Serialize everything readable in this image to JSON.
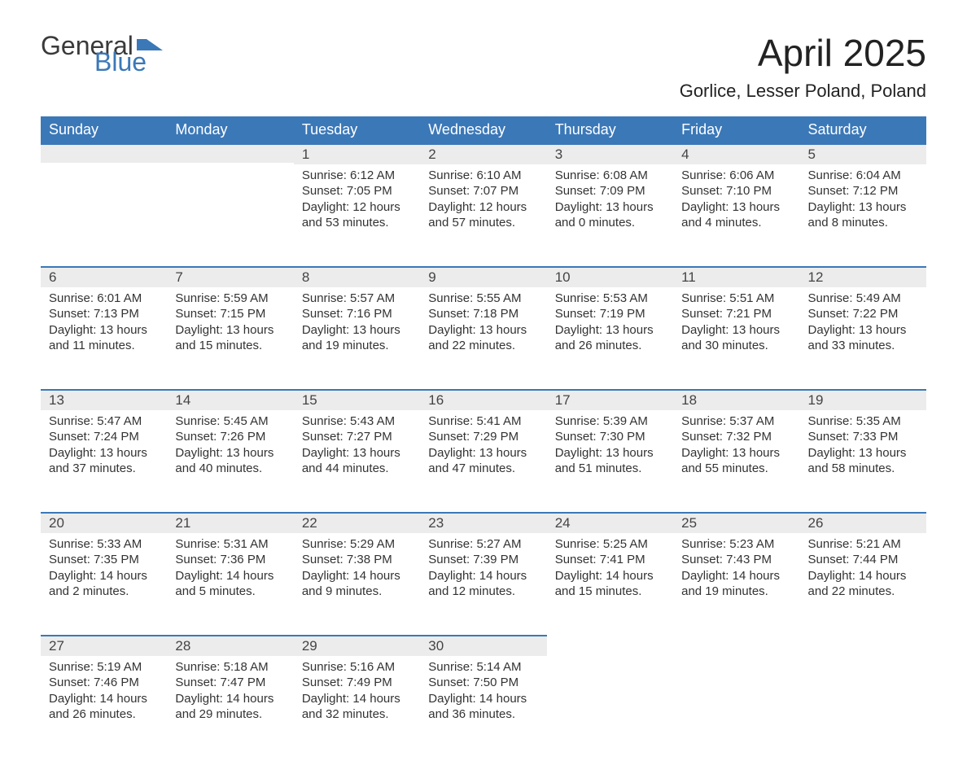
{
  "logo": {
    "text1": "General",
    "text2": "Blue",
    "accent_color": "#3b78b8",
    "text_color": "#3a3a3a"
  },
  "title": "April 2025",
  "location": "Gorlice, Lesser Poland, Poland",
  "styling": {
    "header_bg": "#3b78b8",
    "header_text_color": "#ffffff",
    "daynum_bg": "#ececec",
    "daynum_border": "#3b78b8",
    "body_text_color": "#333333",
    "font_family": "Segoe UI",
    "title_fontsize_pt": 34,
    "location_fontsize_pt": 16,
    "header_fontsize_pt": 13,
    "cell_fontsize_pt": 11
  },
  "calendar": {
    "columns": [
      "Sunday",
      "Monday",
      "Tuesday",
      "Wednesday",
      "Thursday",
      "Friday",
      "Saturday"
    ],
    "weeks": [
      [
        null,
        null,
        {
          "n": "1",
          "sr": "6:12 AM",
          "ss": "7:05 PM",
          "dl": "12 hours and 53 minutes."
        },
        {
          "n": "2",
          "sr": "6:10 AM",
          "ss": "7:07 PM",
          "dl": "12 hours and 57 minutes."
        },
        {
          "n": "3",
          "sr": "6:08 AM",
          "ss": "7:09 PM",
          "dl": "13 hours and 0 minutes."
        },
        {
          "n": "4",
          "sr": "6:06 AM",
          "ss": "7:10 PM",
          "dl": "13 hours and 4 minutes."
        },
        {
          "n": "5",
          "sr": "6:04 AM",
          "ss": "7:12 PM",
          "dl": "13 hours and 8 minutes."
        }
      ],
      [
        {
          "n": "6",
          "sr": "6:01 AM",
          "ss": "7:13 PM",
          "dl": "13 hours and 11 minutes."
        },
        {
          "n": "7",
          "sr": "5:59 AM",
          "ss": "7:15 PM",
          "dl": "13 hours and 15 minutes."
        },
        {
          "n": "8",
          "sr": "5:57 AM",
          "ss": "7:16 PM",
          "dl": "13 hours and 19 minutes."
        },
        {
          "n": "9",
          "sr": "5:55 AM",
          "ss": "7:18 PM",
          "dl": "13 hours and 22 minutes."
        },
        {
          "n": "10",
          "sr": "5:53 AM",
          "ss": "7:19 PM",
          "dl": "13 hours and 26 minutes."
        },
        {
          "n": "11",
          "sr": "5:51 AM",
          "ss": "7:21 PM",
          "dl": "13 hours and 30 minutes."
        },
        {
          "n": "12",
          "sr": "5:49 AM",
          "ss": "7:22 PM",
          "dl": "13 hours and 33 minutes."
        }
      ],
      [
        {
          "n": "13",
          "sr": "5:47 AM",
          "ss": "7:24 PM",
          "dl": "13 hours and 37 minutes."
        },
        {
          "n": "14",
          "sr": "5:45 AM",
          "ss": "7:26 PM",
          "dl": "13 hours and 40 minutes."
        },
        {
          "n": "15",
          "sr": "5:43 AM",
          "ss": "7:27 PM",
          "dl": "13 hours and 44 minutes."
        },
        {
          "n": "16",
          "sr": "5:41 AM",
          "ss": "7:29 PM",
          "dl": "13 hours and 47 minutes."
        },
        {
          "n": "17",
          "sr": "5:39 AM",
          "ss": "7:30 PM",
          "dl": "13 hours and 51 minutes."
        },
        {
          "n": "18",
          "sr": "5:37 AM",
          "ss": "7:32 PM",
          "dl": "13 hours and 55 minutes."
        },
        {
          "n": "19",
          "sr": "5:35 AM",
          "ss": "7:33 PM",
          "dl": "13 hours and 58 minutes."
        }
      ],
      [
        {
          "n": "20",
          "sr": "5:33 AM",
          "ss": "7:35 PM",
          "dl": "14 hours and 2 minutes."
        },
        {
          "n": "21",
          "sr": "5:31 AM",
          "ss": "7:36 PM",
          "dl": "14 hours and 5 minutes."
        },
        {
          "n": "22",
          "sr": "5:29 AM",
          "ss": "7:38 PM",
          "dl": "14 hours and 9 minutes."
        },
        {
          "n": "23",
          "sr": "5:27 AM",
          "ss": "7:39 PM",
          "dl": "14 hours and 12 minutes."
        },
        {
          "n": "24",
          "sr": "5:25 AM",
          "ss": "7:41 PM",
          "dl": "14 hours and 15 minutes."
        },
        {
          "n": "25",
          "sr": "5:23 AM",
          "ss": "7:43 PM",
          "dl": "14 hours and 19 minutes."
        },
        {
          "n": "26",
          "sr": "5:21 AM",
          "ss": "7:44 PM",
          "dl": "14 hours and 22 minutes."
        }
      ],
      [
        {
          "n": "27",
          "sr": "5:19 AM",
          "ss": "7:46 PM",
          "dl": "14 hours and 26 minutes."
        },
        {
          "n": "28",
          "sr": "5:18 AM",
          "ss": "7:47 PM",
          "dl": "14 hours and 29 minutes."
        },
        {
          "n": "29",
          "sr": "5:16 AM",
          "ss": "7:49 PM",
          "dl": "14 hours and 32 minutes."
        },
        {
          "n": "30",
          "sr": "5:14 AM",
          "ss": "7:50 PM",
          "dl": "14 hours and 36 minutes."
        },
        null,
        null,
        null
      ]
    ],
    "labels": {
      "sunrise": "Sunrise: ",
      "sunset": "Sunset: ",
      "daylight": "Daylight: "
    }
  }
}
